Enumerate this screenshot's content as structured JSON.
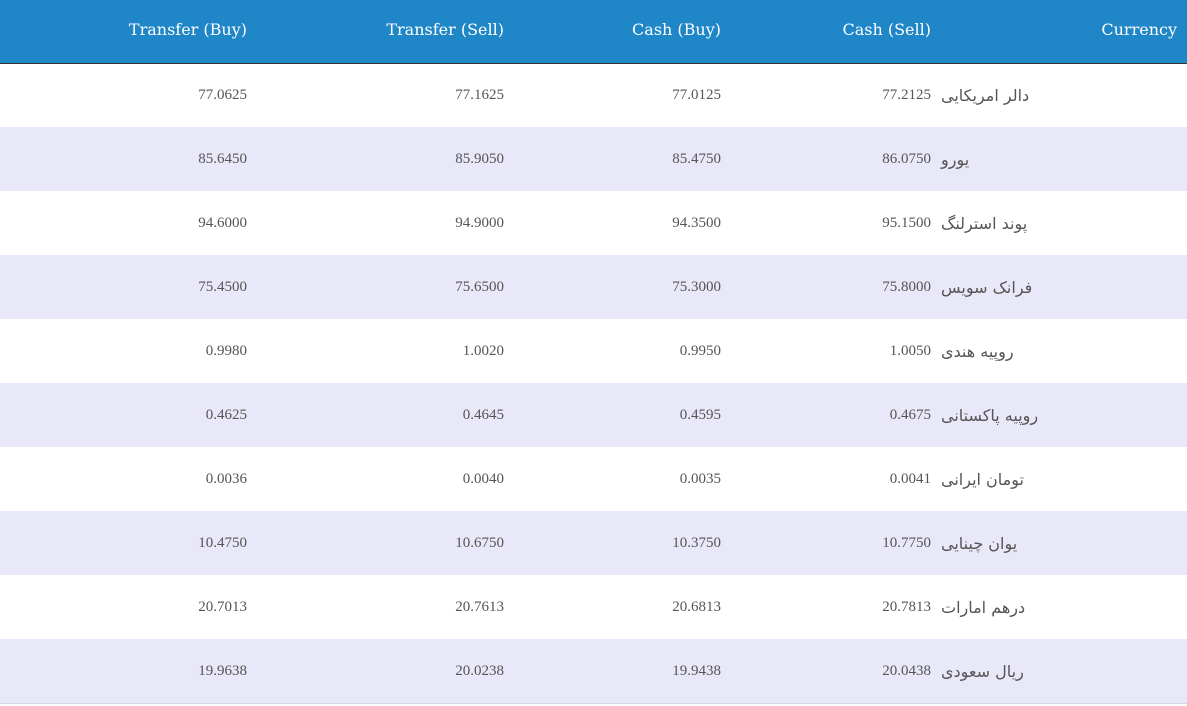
{
  "table": {
    "headers": {
      "transfer_buy": "Transfer (Buy)",
      "transfer_sell": "Transfer (Sell)",
      "cash_buy": "Cash (Buy)",
      "cash_sell": "Cash (Sell)",
      "currency": "Currency"
    },
    "header_color": "#1f86c8",
    "stripe_color": "#e8e8f8",
    "rows": [
      {
        "transfer_buy": "77.0625",
        "transfer_sell": "77.1625",
        "cash_buy": "77.0125",
        "cash_sell": "77.2125",
        "currency": "دالر امریکایی"
      },
      {
        "transfer_buy": "85.6450",
        "transfer_sell": "85.9050",
        "cash_buy": "85.4750",
        "cash_sell": "86.0750",
        "currency": "یورو"
      },
      {
        "transfer_buy": "94.6000",
        "transfer_sell": "94.9000",
        "cash_buy": "94.3500",
        "cash_sell": "95.1500",
        "currency": "پوند استرلنگ"
      },
      {
        "transfer_buy": "75.4500",
        "transfer_sell": "75.6500",
        "cash_buy": "75.3000",
        "cash_sell": "75.8000",
        "currency": "فرانک سویس"
      },
      {
        "transfer_buy": "0.9980",
        "transfer_sell": "1.0020",
        "cash_buy": "0.9950",
        "cash_sell": "1.0050",
        "currency": "روپیه هندی"
      },
      {
        "transfer_buy": "0.4625",
        "transfer_sell": "0.4645",
        "cash_buy": "0.4595",
        "cash_sell": "0.4675",
        "currency": "روپیه پاکستانی"
      },
      {
        "transfer_buy": "0.0036",
        "transfer_sell": "0.0040",
        "cash_buy": "0.0035",
        "cash_sell": "0.0041",
        "currency": "تومان ایرانی"
      },
      {
        "transfer_buy": "10.4750",
        "transfer_sell": "10.6750",
        "cash_buy": "10.3750",
        "cash_sell": "10.7750",
        "currency": "یوان چینایی"
      },
      {
        "transfer_buy": "20.7013",
        "transfer_sell": "20.7613",
        "cash_buy": "20.6813",
        "cash_sell": "20.7813",
        "currency": "درهم امارات"
      },
      {
        "transfer_buy": "19.9638",
        "transfer_sell": "20.0238",
        "cash_buy": "19.9438",
        "cash_sell": "20.0438",
        "currency": "ریال سعودی"
      }
    ]
  }
}
